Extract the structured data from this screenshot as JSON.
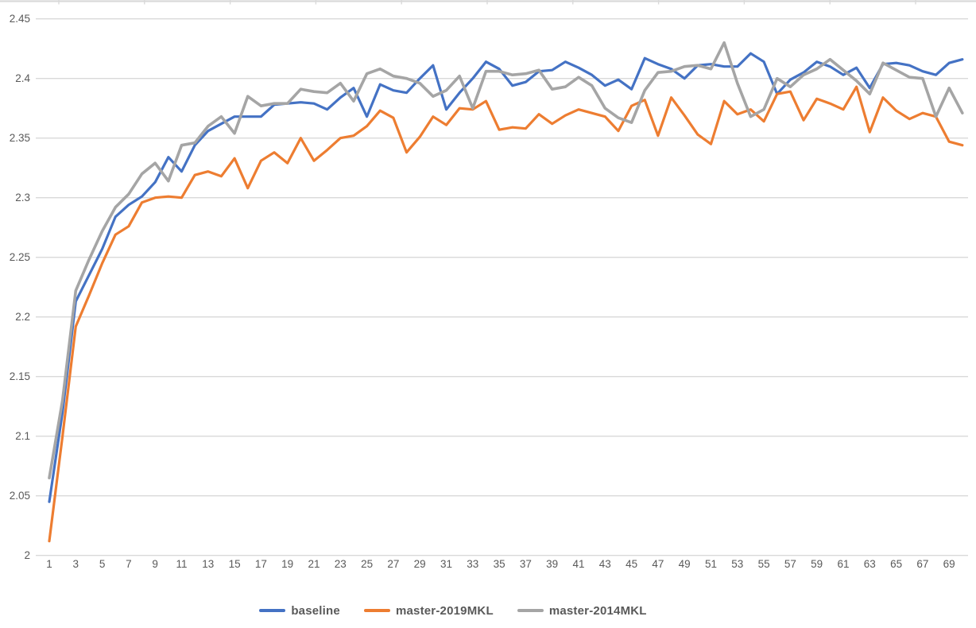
{
  "chart_data": {
    "type": "line",
    "x": [
      1,
      2,
      3,
      4,
      5,
      6,
      7,
      8,
      9,
      10,
      11,
      12,
      13,
      14,
      15,
      16,
      17,
      18,
      19,
      20,
      21,
      22,
      23,
      24,
      25,
      26,
      27,
      28,
      29,
      30,
      31,
      32,
      33,
      34,
      35,
      36,
      37,
      38,
      39,
      40,
      41,
      42,
      43,
      44,
      45,
      46,
      47,
      48,
      49,
      50,
      51,
      52,
      53,
      54,
      55,
      56,
      57,
      58,
      59,
      60,
      61,
      62,
      63,
      64,
      65,
      66,
      67,
      68,
      69,
      70
    ],
    "x_tick_labels": [
      "1",
      "3",
      "5",
      "7",
      "9",
      "11",
      "13",
      "15",
      "17",
      "19",
      "21",
      "23",
      "25",
      "27",
      "29",
      "31",
      "33",
      "35",
      "37",
      "39",
      "41",
      "43",
      "45",
      "47",
      "49",
      "51",
      "53",
      "55",
      "57",
      "59",
      "61",
      "63",
      "65",
      "67",
      "69"
    ],
    "y_tick_labels": [
      "2",
      "2.05",
      "2.1",
      "2.15",
      "2.2",
      "2.25",
      "2.3",
      "2.35",
      "2.4",
      "2.45"
    ],
    "ylim": [
      2.0,
      2.45
    ],
    "ytick_step": 0.05,
    "grid": true,
    "legend_position": "bottom",
    "title": "",
    "xlabel": "",
    "ylabel": "",
    "series": [
      {
        "name": "baseline",
        "color": "#4472C4",
        "values": [
          2.045,
          2.12,
          2.213,
          2.235,
          2.257,
          2.284,
          2.294,
          2.301,
          2.313,
          2.334,
          2.322,
          2.344,
          2.356,
          2.362,
          2.368,
          2.368,
          2.368,
          2.378,
          2.379,
          2.38,
          2.379,
          2.374,
          2.384,
          2.392,
          2.368,
          2.395,
          2.39,
          2.388,
          2.4,
          2.411,
          2.374,
          2.388,
          2.4,
          2.414,
          2.408,
          2.394,
          2.397,
          2.406,
          2.407,
          2.414,
          2.409,
          2.403,
          2.394,
          2.399,
          2.391,
          2.417,
          2.412,
          2.408,
          2.4,
          2.411,
          2.412,
          2.41,
          2.41,
          2.421,
          2.414,
          2.387,
          2.399,
          2.405,
          2.414,
          2.41,
          2.403,
          2.409,
          2.392,
          2.412,
          2.413,
          2.411,
          2.406,
          2.403,
          2.413,
          2.416
        ]
      },
      {
        "name": "master-2019MKL",
        "color": "#ED7D31",
        "values": [
          2.012,
          2.1,
          2.192,
          2.218,
          2.245,
          2.269,
          2.276,
          2.296,
          2.3,
          2.301,
          2.3,
          2.319,
          2.322,
          2.318,
          2.333,
          2.308,
          2.331,
          2.338,
          2.329,
          2.35,
          2.331,
          2.34,
          2.35,
          2.352,
          2.36,
          2.373,
          2.367,
          2.338,
          2.351,
          2.368,
          2.361,
          2.375,
          2.374,
          2.381,
          2.357,
          2.359,
          2.358,
          2.37,
          2.362,
          2.369,
          2.374,
          2.371,
          2.368,
          2.356,
          2.377,
          2.382,
          2.352,
          2.384,
          2.369,
          2.353,
          2.345,
          2.381,
          2.37,
          2.374,
          2.364,
          2.387,
          2.389,
          2.365,
          2.383,
          2.379,
          2.374,
          2.393,
          2.355,
          2.384,
          2.373,
          2.366,
          2.371,
          2.368,
          2.347,
          2.344
        ]
      },
      {
        "name": "master-2014MKL",
        "color": "#A5A5A5",
        "values": [
          2.065,
          2.13,
          2.222,
          2.248,
          2.272,
          2.292,
          2.303,
          2.32,
          2.329,
          2.314,
          2.344,
          2.346,
          2.36,
          2.368,
          2.354,
          2.385,
          2.377,
          2.379,
          2.379,
          2.391,
          2.389,
          2.388,
          2.396,
          2.381,
          2.404,
          2.408,
          2.402,
          2.4,
          2.396,
          2.385,
          2.39,
          2.402,
          2.375,
          2.406,
          2.406,
          2.403,
          2.404,
          2.407,
          2.391,
          2.393,
          2.401,
          2.394,
          2.375,
          2.367,
          2.363,
          2.39,
          2.405,
          2.406,
          2.41,
          2.411,
          2.408,
          2.43,
          2.396,
          2.368,
          2.374,
          2.4,
          2.393,
          2.403,
          2.408,
          2.416,
          2.407,
          2.398,
          2.387,
          2.413,
          2.407,
          2.401,
          2.4,
          2.368,
          2.392,
          2.371
        ]
      }
    ]
  },
  "legend": {
    "items": [
      {
        "label": "baseline",
        "color": "#4472C4"
      },
      {
        "label": "master-2019MKL",
        "color": "#ED7D31"
      },
      {
        "label": "master-2014MKL",
        "color": "#A5A5A5"
      }
    ]
  },
  "style": {
    "gridline_color": "#D9D9D9",
    "axis_text_color": "#595959",
    "background": "#FFFFFF"
  }
}
